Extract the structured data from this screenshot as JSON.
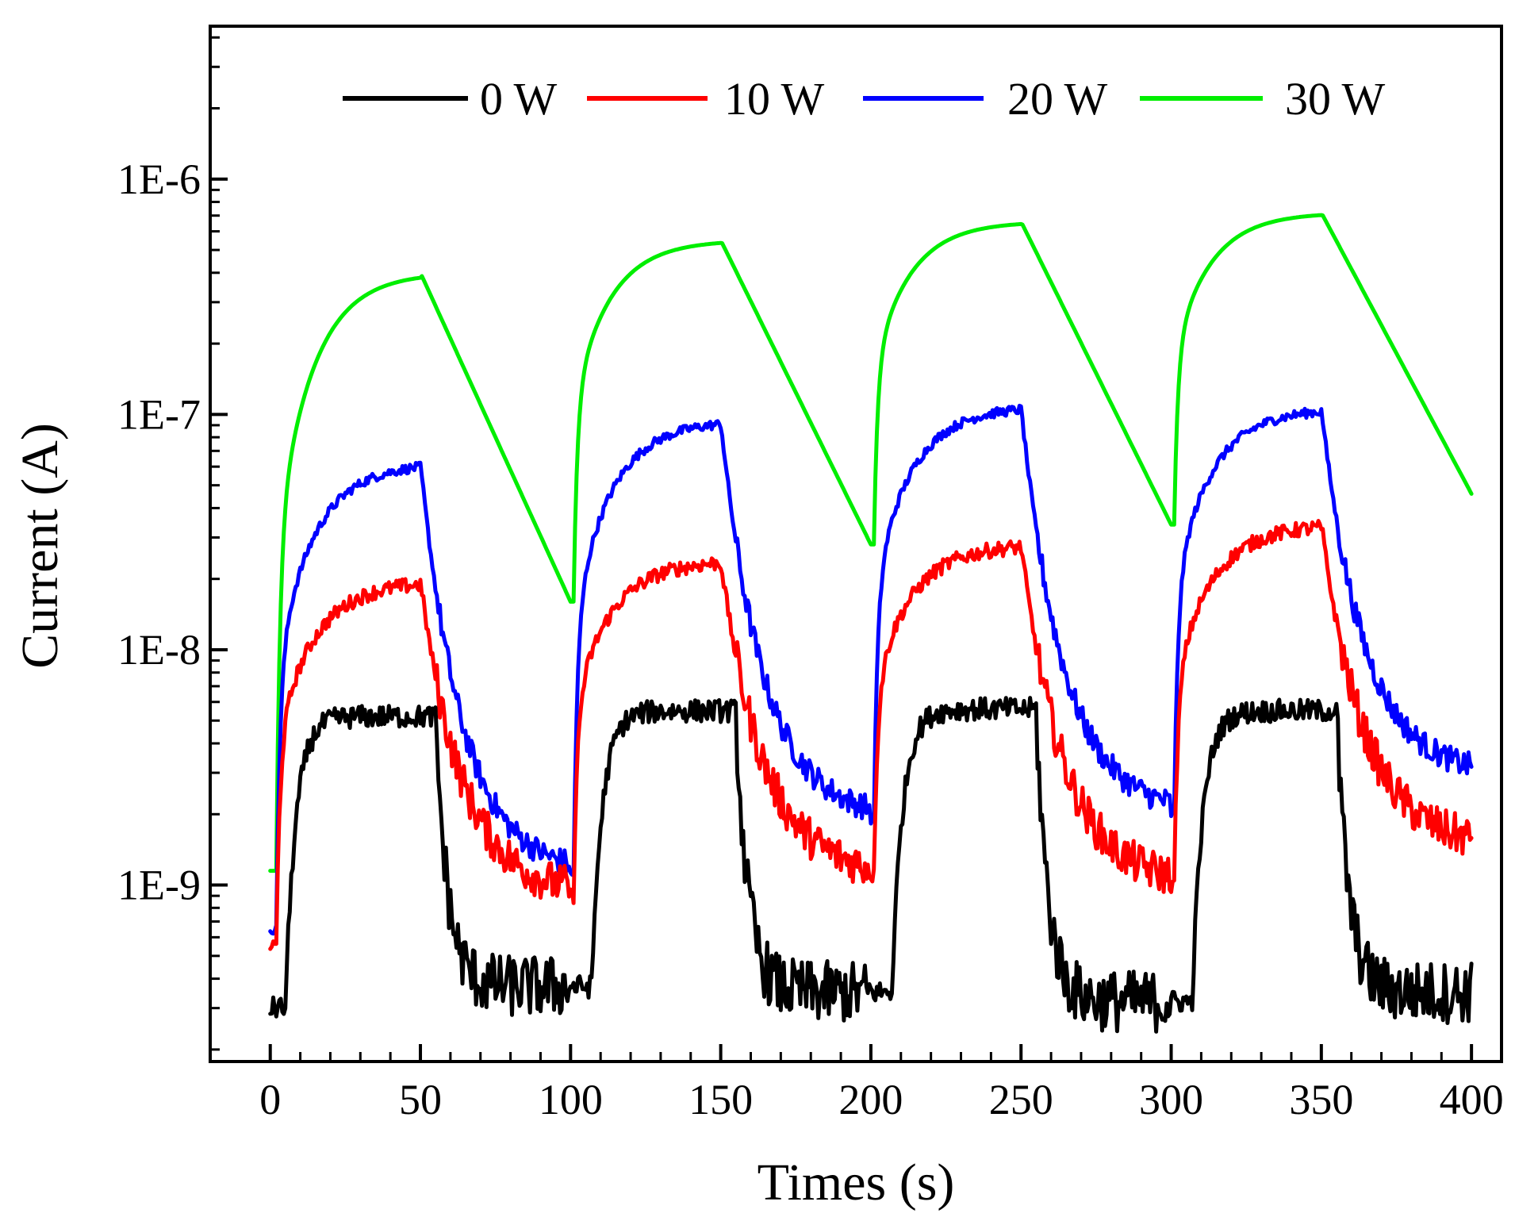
{
  "chart_data": {
    "type": "line",
    "title": "",
    "xlabel": "Times (s)",
    "ylabel": "Current (A)",
    "xlim": [
      -20,
      410
    ],
    "ylim_log10": [
      -9.75,
      -5.35
    ],
    "yscale": "log",
    "x_ticks": [
      0,
      50,
      100,
      150,
      200,
      250,
      300,
      350,
      400
    ],
    "x_tick_labels": [
      "0",
      "50",
      "100",
      "150",
      "200",
      "250",
      "300",
      "350",
      "400"
    ],
    "y_ticks_log10": [
      -9,
      -8,
      -7,
      -6
    ],
    "y_tick_labels": [
      "1E-9",
      "1E-8",
      "1E-7",
      "1E-6"
    ],
    "legend_position": "top",
    "grid": false,
    "series": [
      {
        "name": "0 W",
        "color": "#000000",
        "on_level": [
          5.2e-09,
          5.5e-09,
          5.6e-09,
          5.5e-09
        ],
        "off_level": [
          3.7e-10,
          3.5e-10,
          3.2e-10,
          3.5e-10
        ],
        "start": 3e-10,
        "cycles_on_start": [
          5,
          107,
          207,
          307
        ],
        "noise": 0.06
      },
      {
        "name": "10 W",
        "color": "#ff0000",
        "on_level": [
          1.95e-08,
          2.4e-08,
          2.8e-08,
          3.4e-08
        ],
        "off_level": [
          9e-10,
          1.1e-09,
          1e-09,
          1.45e-09
        ],
        "start": 5.5e-10,
        "cycles_on_start": [
          2,
          101,
          201,
          301
        ],
        "noise": 0.04
      },
      {
        "name": "20 W",
        "color": "#0000ff",
        "on_level": [
          6.2e-08,
          9.4e-08,
          1.08e-07,
          1.06e-07
        ],
        "off_level": [
          1.1e-09,
          1.9e-09,
          2e-09,
          2.9e-09
        ],
        "start": 6.5e-10,
        "cycles_on_start": [
          2,
          101,
          201,
          301
        ],
        "noise": 0.025
      },
      {
        "name": "30 W",
        "color": "#00ee00",
        "on_level": [
          4e-07,
          5.5e-07,
          6.6e-07,
          7.2e-07
        ],
        "off_level": [
          1.6e-08,
          2.8e-08,
          3.4e-08,
          4.6e-08
        ],
        "start": 1.15e-09,
        "cycles_on_start": [
          2,
          101,
          201,
          301
        ],
        "noise": 0.0
      }
    ]
  }
}
